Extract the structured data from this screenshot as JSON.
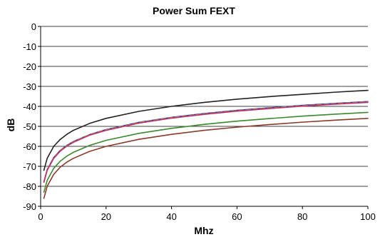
{
  "chart_data": {
    "type": "line",
    "title": "Power Sum FEXT",
    "xlabel": "Mhz",
    "ylabel": "dB",
    "xlim": [
      0,
      100
    ],
    "ylim": [
      -90,
      0
    ],
    "x_ticks": [
      "0",
      "20",
      "40",
      "60",
      "80",
      "100"
    ],
    "y_ticks": [
      "0",
      "-10",
      "-20",
      "-30",
      "-40",
      "-50",
      "-60",
      "-70",
      "-80",
      "-90"
    ],
    "grid": "horizontal",
    "legend": "none",
    "x": [
      1,
      2,
      4,
      6,
      8,
      10,
      15,
      20,
      30,
      40,
      50,
      60,
      70,
      80,
      90,
      100
    ],
    "series": [
      {
        "color": "#222222",
        "values": [
          -72,
          -66,
          -60,
          -56.5,
          -54,
          -52,
          -48.5,
          -46,
          -42.5,
          -40,
          -38,
          -36.4,
          -35.1,
          -34,
          -32.9,
          -32
        ]
      },
      {
        "color": "#1f3fbf",
        "values": [
          -77.6,
          -71.6,
          -65.6,
          -62,
          -59.5,
          -57.6,
          -54.1,
          -51.6,
          -48,
          -45.5,
          -43.6,
          -42,
          -40.7,
          -39.5,
          -38.5,
          -37.6
        ]
      },
      {
        "color": "#d4a017",
        "values": [
          -77.8,
          -71.8,
          -65.8,
          -62.2,
          -59.7,
          -57.8,
          -54.2,
          -51.8,
          -48.2,
          -45.7,
          -43.8,
          -42.2,
          -40.9,
          -39.7,
          -38.7,
          -37.8
        ]
      },
      {
        "color": "#c0306a",
        "values": [
          -78,
          -72,
          -66,
          -62.4,
          -59.9,
          -58,
          -54.4,
          -52,
          -48.4,
          -45.9,
          -44,
          -42.4,
          -41.1,
          -39.9,
          -38.9,
          -38
        ]
      },
      {
        "color": "#3a8a2e",
        "values": [
          -83,
          -77,
          -71,
          -67.4,
          -64.9,
          -63,
          -59.5,
          -57,
          -53.5,
          -51,
          -49,
          -47.4,
          -46.1,
          -44.9,
          -43.9,
          -43
        ]
      },
      {
        "color": "#8b3a2a",
        "values": [
          -86,
          -80,
          -74,
          -70.4,
          -67.9,
          -66,
          -62.5,
          -60,
          -56.5,
          -54,
          -52,
          -50.4,
          -49.1,
          -47.9,
          -46.9,
          -46
        ]
      }
    ]
  }
}
